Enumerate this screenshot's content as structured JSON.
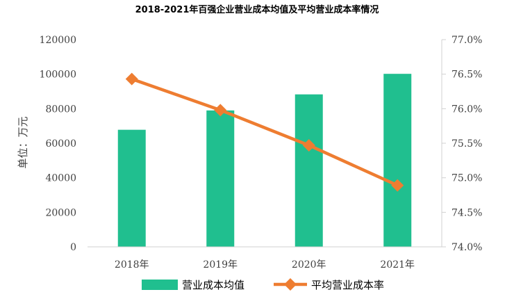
{
  "chart_data": {
    "type": "bar+line",
    "title": "2018-2021年百强企业营业成本均值及平均营业成本率情况",
    "categories": [
      "2018年",
      "2019年",
      "2020年",
      "2021年"
    ],
    "series": [
      {
        "name": "营业成本均值",
        "type": "bar",
        "axis": "left",
        "color": "#20bf8f",
        "values": [
          67800,
          79000,
          88300,
          100200
        ]
      },
      {
        "name": "平均营业成本率",
        "type": "line",
        "axis": "right",
        "color": "#ee7d31",
        "marker": "diamond",
        "values": [
          76.43,
          75.98,
          75.47,
          74.89
        ]
      }
    ],
    "ylabel_left": "单位：万元",
    "ylim_left": [
      0,
      120000
    ],
    "yticks_left": [
      "0",
      "20000",
      "40000",
      "60000",
      "80000",
      "100000",
      "120000"
    ],
    "ylim_right": [
      74.0,
      77.0
    ],
    "yticks_right": [
      "74.0%",
      "74.5%",
      "75.0%",
      "75.5%",
      "76.0%",
      "76.5%",
      "77.0%"
    ],
    "legend": "bottom",
    "grid": false
  }
}
